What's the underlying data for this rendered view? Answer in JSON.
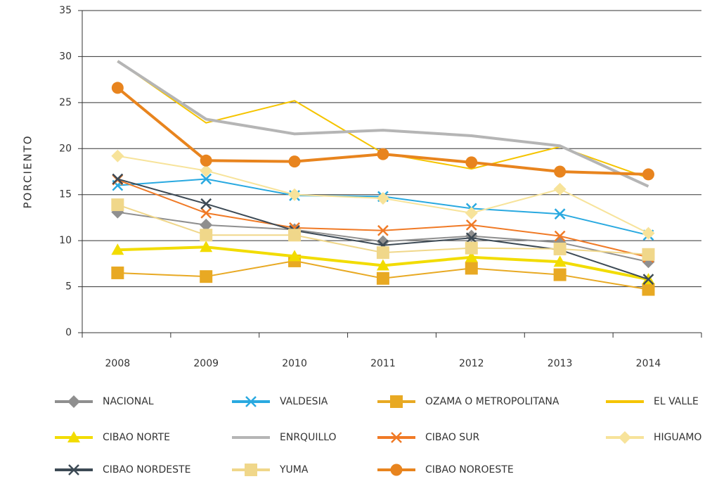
{
  "chart_data": {
    "type": "line",
    "y_label": "PORCIENTO",
    "categories": [
      "2008",
      "2009",
      "2010",
      "2011",
      "2012",
      "2013",
      "2014"
    ],
    "ylim": [
      0,
      35
    ],
    "yticks": [
      0,
      5,
      10,
      15,
      20,
      25,
      30,
      35
    ],
    "grid": true,
    "series": [
      {
        "name": "NACIONAL",
        "color": "#8f8f8f",
        "marker": "diamond",
        "values": [
          13.1,
          11.7,
          11.2,
          9.9,
          10.5,
          9.8,
          7.7
        ]
      },
      {
        "name": "VALDESIA",
        "color": "#29a9e0",
        "marker": "x",
        "values": [
          16.0,
          16.7,
          14.9,
          14.8,
          13.5,
          12.9,
          10.6
        ]
      },
      {
        "name": "OZAMA O METROPOLITANA",
        "color": "#e8a923",
        "marker": "square",
        "values": [
          6.5,
          6.1,
          7.8,
          5.9,
          7.0,
          6.3,
          4.7
        ]
      },
      {
        "name": "EL VALLE",
        "color": "#f5c400",
        "marker": "none",
        "values": [
          29.5,
          22.8,
          25.2,
          19.5,
          17.8,
          20.2,
          16.8
        ]
      },
      {
        "name": "CIBAO NORTE",
        "color": "#f2dc00",
        "marker": "triangle",
        "values": [
          9.0,
          9.3,
          8.3,
          7.3,
          8.2,
          7.7,
          5.8
        ]
      },
      {
        "name": "ENRQUILLO",
        "color": "#b5b5b5",
        "marker": "none",
        "values": [
          29.5,
          23.2,
          21.6,
          22.0,
          21.4,
          20.3,
          15.9
        ]
      },
      {
        "name": "CIBAO SUR",
        "color": "#f07a26",
        "marker": "x",
        "values": [
          16.6,
          13.0,
          11.4,
          11.1,
          11.7,
          10.5,
          8.2
        ]
      },
      {
        "name": "HIGUAMO",
        "color": "#f7e39a",
        "marker": "diamond",
        "values": [
          19.2,
          17.6,
          15.0,
          14.6,
          13.0,
          15.6,
          10.8
        ]
      },
      {
        "name": "CIBAO NORDESTE",
        "color": "#3d4a55",
        "marker": "x",
        "values": [
          16.7,
          14.0,
          11.1,
          9.5,
          10.3,
          9.0,
          5.8
        ]
      },
      {
        "name": "YUMA",
        "color": "#f0d78a",
        "marker": "square",
        "values": [
          13.9,
          10.6,
          10.6,
          8.7,
          9.2,
          9.1,
          8.5
        ]
      },
      {
        "name": "CIBAO NOROESTE",
        "color": "#e8841e",
        "marker": "circle",
        "values": [
          26.6,
          18.7,
          18.6,
          19.4,
          18.5,
          17.5,
          17.2
        ]
      }
    ]
  }
}
